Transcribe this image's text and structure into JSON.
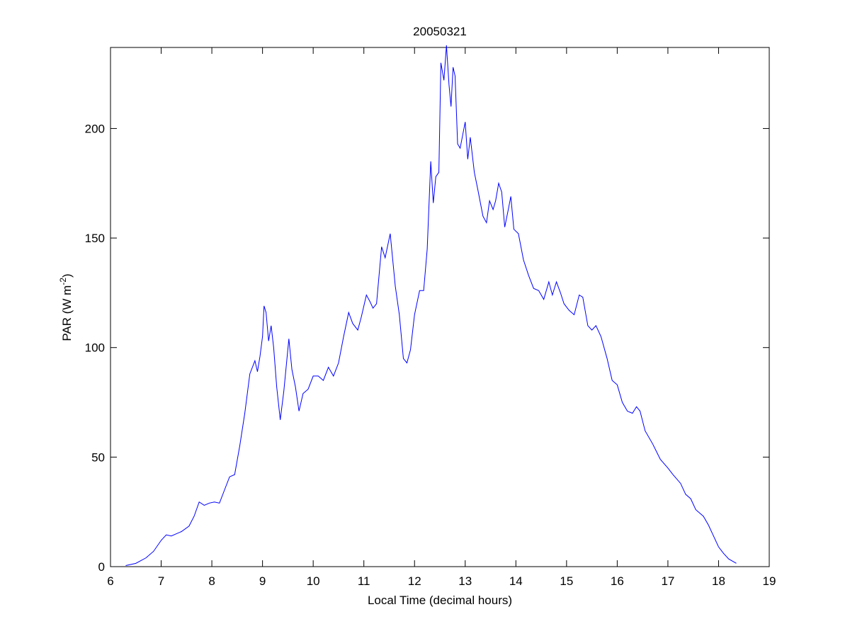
{
  "chart_data": {
    "type": "line",
    "title": "20050321",
    "xlabel": "Local Time (decimal hours)",
    "ylabel": {
      "text": "PAR (W m",
      "sup": "-2",
      "end": ")"
    },
    "xlim": [
      6,
      19
    ],
    "xticks": [
      6,
      7,
      8,
      9,
      10,
      11,
      12,
      13,
      14,
      15,
      16,
      17,
      18,
      19
    ],
    "ylim": [
      0,
      237
    ],
    "yticks": [
      0,
      50,
      100,
      150,
      200
    ],
    "grid": false,
    "series": [
      {
        "color": "#0000ff",
        "x": [
          6.3,
          6.5,
          6.7,
          6.85,
          7.0,
          7.1,
          7.2,
          7.4,
          7.55,
          7.65,
          7.75,
          7.85,
          7.95,
          8.05,
          8.15,
          8.25,
          8.35,
          8.45,
          8.55,
          8.65,
          8.75,
          8.85,
          8.9,
          8.95,
          9.0,
          9.03,
          9.07,
          9.12,
          9.17,
          9.22,
          9.28,
          9.35,
          9.42,
          9.52,
          9.58,
          9.65,
          9.72,
          9.8,
          9.9,
          10.0,
          10.1,
          10.2,
          10.3,
          10.4,
          10.5,
          10.6,
          10.7,
          10.78,
          10.88,
          10.95,
          11.05,
          11.12,
          11.18,
          11.25,
          11.35,
          11.42,
          11.52,
          11.62,
          11.7,
          11.78,
          11.85,
          11.92,
          12.0,
          12.1,
          12.18,
          12.25,
          12.32,
          12.37,
          12.42,
          12.48,
          12.52,
          12.58,
          12.63,
          12.68,
          12.72,
          12.76,
          12.8,
          12.85,
          12.9,
          12.95,
          13.0,
          13.05,
          13.1,
          13.18,
          13.25,
          13.35,
          13.42,
          13.48,
          13.55,
          13.6,
          13.66,
          13.72,
          13.78,
          13.85,
          13.9,
          13.96,
          14.05,
          14.15,
          14.25,
          14.35,
          14.45,
          14.55,
          14.65,
          14.72,
          14.8,
          14.88,
          14.95,
          15.05,
          15.15,
          15.25,
          15.32,
          15.42,
          15.5,
          15.58,
          15.68,
          15.8,
          15.9,
          16.0,
          16.1,
          16.2,
          16.3,
          16.38,
          16.45,
          16.55,
          16.7,
          16.85,
          17.0,
          17.1,
          17.25,
          17.35,
          17.45,
          17.55,
          17.7,
          17.8,
          17.9,
          18.0,
          18.1,
          18.2,
          18.35
        ],
        "values": [
          0.5,
          1.5,
          4,
          7,
          12,
          14.5,
          14,
          16,
          18.5,
          23,
          29.5,
          28,
          29,
          29.5,
          29,
          35,
          41,
          42,
          55,
          70,
          88,
          94,
          89,
          96,
          105,
          119,
          116,
          103,
          110,
          100,
          82,
          67,
          80,
          104,
          90,
          82,
          71,
          79,
          81,
          87,
          87,
          85,
          91,
          87,
          93,
          105,
          116,
          111,
          108,
          114,
          124,
          121,
          118,
          120,
          146,
          141,
          152,
          128,
          115,
          95,
          93,
          99,
          115,
          126,
          126,
          145,
          185,
          166,
          178,
          180,
          230,
          222,
          238,
          220,
          210,
          228,
          224,
          193,
          191,
          197,
          203,
          186,
          196,
          180,
          172,
          160,
          157,
          167,
          163,
          167,
          175,
          171,
          155,
          163,
          169,
          154,
          152,
          140,
          133,
          127,
          126,
          122,
          130,
          124,
          130,
          125,
          120,
          117,
          115,
          124,
          123,
          110,
          108,
          110,
          105,
          95,
          85,
          83,
          75,
          71,
          70,
          73,
          71,
          62,
          56,
          49,
          45,
          42,
          38,
          33,
          31,
          26,
          23,
          19,
          14,
          9,
          6,
          3.5,
          1.5
        ]
      }
    ]
  }
}
